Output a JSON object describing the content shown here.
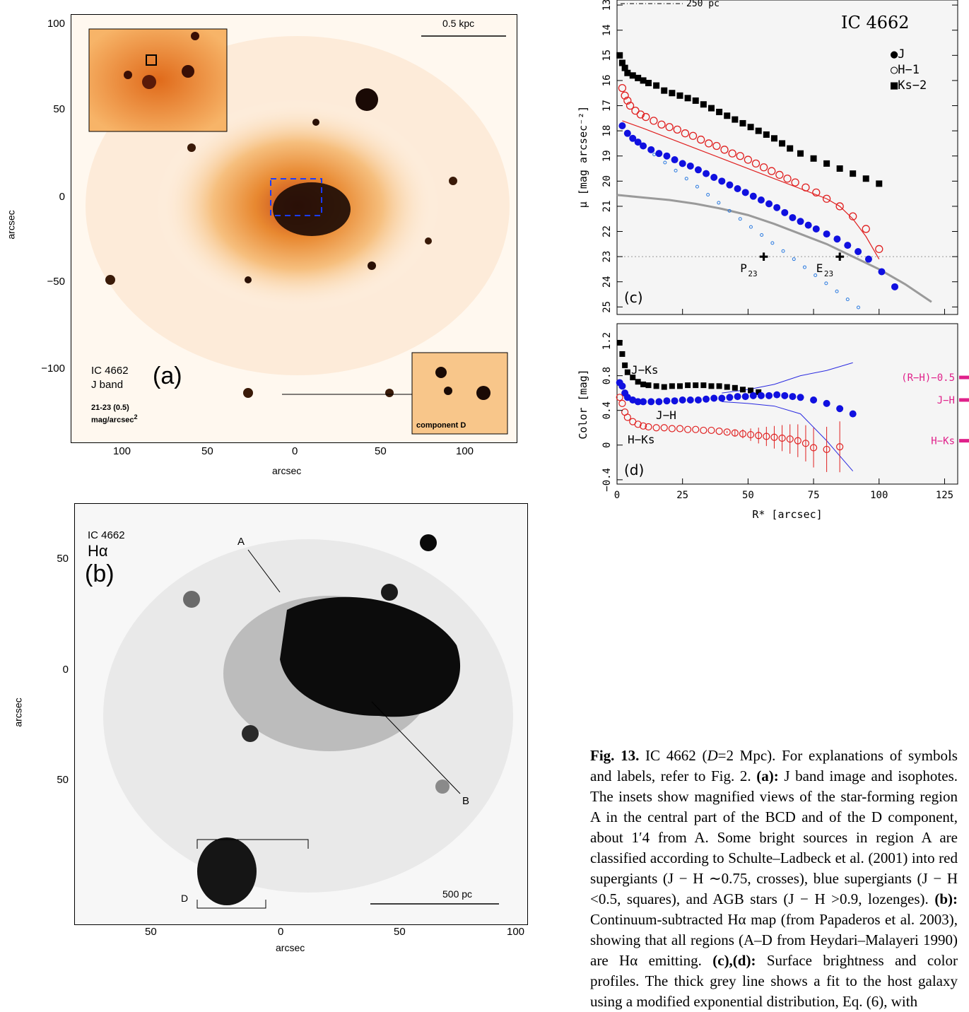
{
  "panel_a": {
    "object": "IC 4662",
    "band": "J band",
    "label": "(a)",
    "range_line1": "21-23 (0.5)",
    "range_line2": "mag/arcsec",
    "range_sup": "2",
    "scale_bar": "0.5 kpc",
    "inset_label": "component D",
    "axis_label": "arcsec",
    "x_ticks": [
      "100",
      "50",
      "0",
      "50",
      "100"
    ],
    "y_ticks": [
      "100",
      "50",
      "0",
      "−50",
      "−100"
    ]
  },
  "panel_b": {
    "object": "IC 4662",
    "band": "Hα",
    "label": "(b)",
    "region_a": "A",
    "region_b": "B",
    "region_d": "D",
    "scale_bar": "500 pc",
    "axis_label": "arcsec",
    "x_ticks": [
      "50",
      "0",
      "50",
      "100"
    ],
    "y_ticks": [
      "50",
      "0",
      "50"
    ]
  },
  "panel_c": {
    "label": "(c)",
    "object": "IC 4662",
    "scale_bar": "250 pc",
    "ylabel": "μ [mag arcsec⁻²]",
    "legend": [
      "●J",
      "○H−1",
      "■Ks−2"
    ],
    "annot_p": "P",
    "annot_e": "E",
    "annot_sub": "23",
    "y_ticks": [
      "13",
      "14",
      "15",
      "16",
      "17",
      "18",
      "19",
      "20",
      "21",
      "22",
      "23",
      "24",
      "25"
    ]
  },
  "panel_d": {
    "label": "(d)",
    "ylabel": "Color [mag]",
    "xlabel": "R* [arcsec]",
    "curve_labels": [
      "J−Ks",
      "J−H",
      "H−Ks"
    ],
    "side_labels": [
      "(R−H)−0.5",
      "J−H",
      "H−Ks"
    ],
    "y_ticks": [
      "1.2",
      "0.8",
      "0.4",
      "0",
      "−0.4"
    ],
    "x_ticks": [
      "0",
      "25",
      "50",
      "75",
      "100",
      "125"
    ]
  },
  "caption": {
    "fig": "Fig. 13.",
    "text1": " IC 4662 (",
    "d_var": "D",
    "text2": "=2 Mpc). For explanations of symbols and labels, refer to Fig. 2. ",
    "a_tag": "(a):",
    "text3": " J band image and isophotes. The insets show magnified views of the star-forming region A in the central part of the BCD and of the D component, about 1′4 from A. Some bright sources in region A are classified according to Schulte–Ladbeck et al. (2001) into red supergiants (J − H ∼0.75, crosses), blue supergiants (J − H <0.5, squares), and AGB stars (J − H >0.9, lozenges). ",
    "b_tag": "(b):",
    "text4": " Continuum-subtracted Hα map (from Papaderos et al. 2003), showing that all regions (A–D from Heydari–Malayeri 1990) are Hα emitting. ",
    "cd_tag": "(c),(d):",
    "text5": " Surface brightness and color profiles. The thick grey line shows a fit to the host galaxy using a modified exponential distribution, Eq. (6), with"
  },
  "chart_data": [
    {
      "type": "scatter",
      "title": "IC 4662",
      "xlabel": "",
      "ylabel": "μ [mag arcsec⁻²]",
      "xlim": [
        0,
        130
      ],
      "ylim": [
        25.3,
        12.8
      ],
      "series": [
        {
          "name": "Ks−2",
          "marker": "filled-square",
          "color": "#000000",
          "x": [
            1,
            2,
            3,
            4,
            6,
            8,
            10,
            12,
            15,
            18,
            21,
            24,
            27,
            30,
            33,
            36,
            39,
            42,
            45,
            48,
            51,
            54,
            57,
            60,
            63,
            66,
            70,
            75,
            80,
            85,
            90,
            95,
            100
          ],
          "y": [
            15.0,
            15.3,
            15.5,
            15.7,
            15.8,
            15.9,
            16.0,
            16.1,
            16.2,
            16.4,
            16.5,
            16.6,
            16.7,
            16.8,
            16.95,
            17.1,
            17.25,
            17.4,
            17.55,
            17.7,
            17.85,
            18.0,
            18.15,
            18.3,
            18.5,
            18.7,
            18.9,
            19.1,
            19.3,
            19.5,
            19.7,
            19.9,
            20.1
          ]
        },
        {
          "name": "H−1",
          "marker": "open-circle",
          "color": "#e02020",
          "x": [
            2,
            3,
            4,
            5,
            7,
            9,
            11,
            14,
            17,
            20,
            23,
            26,
            29,
            32,
            35,
            38,
            41,
            44,
            47,
            50,
            53,
            56,
            59,
            62,
            65,
            68,
            72,
            76,
            80,
            85,
            90,
            95,
            100
          ],
          "y": [
            16.3,
            16.6,
            16.8,
            17.0,
            17.2,
            17.35,
            17.45,
            17.6,
            17.75,
            17.85,
            17.95,
            18.1,
            18.2,
            18.35,
            18.5,
            18.6,
            18.75,
            18.9,
            19.0,
            19.15,
            19.3,
            19.45,
            19.6,
            19.75,
            19.9,
            20.05,
            20.25,
            20.45,
            20.7,
            21.0,
            21.4,
            21.9,
            22.7
          ]
        },
        {
          "name": "J",
          "marker": "filled-circle",
          "color": "#1010e0",
          "x": [
            2,
            4,
            6,
            8,
            10,
            13,
            16,
            19,
            22,
            25,
            28,
            31,
            34,
            37,
            40,
            43,
            46,
            49,
            52,
            55,
            58,
            61,
            64,
            67,
            70,
            73,
            76,
            80,
            84,
            88,
            92,
            96,
            101,
            106
          ],
          "y": [
            17.8,
            18.1,
            18.3,
            18.45,
            18.6,
            18.75,
            18.9,
            19.0,
            19.15,
            19.3,
            19.4,
            19.55,
            19.7,
            19.85,
            20.0,
            20.15,
            20.3,
            20.45,
            20.6,
            20.75,
            20.9,
            21.05,
            21.25,
            21.45,
            21.6,
            21.75,
            21.9,
            22.1,
            22.3,
            22.55,
            22.8,
            23.1,
            23.6,
            24.2
          ]
        }
      ]
    },
    {
      "type": "scatter",
      "title": "",
      "xlabel": "R* [arcsec]",
      "ylabel": "Color [mag]",
      "xlim": [
        0,
        130
      ],
      "ylim": [
        -0.45,
        1.4
      ],
      "series": [
        {
          "name": "J−Ks",
          "marker": "filled-square",
          "color": "#000000",
          "x": [
            1,
            2,
            3,
            4,
            6,
            8,
            10,
            12,
            15,
            18,
            21,
            24,
            27,
            30,
            33,
            36,
            39,
            42,
            45,
            48,
            51,
            54
          ],
          "y": [
            1.18,
            1.05,
            0.92,
            0.84,
            0.78,
            0.73,
            0.7,
            0.69,
            0.68,
            0.67,
            0.68,
            0.68,
            0.69,
            0.69,
            0.69,
            0.68,
            0.68,
            0.67,
            0.66,
            0.64,
            0.63,
            0.61
          ]
        },
        {
          "name": "J−H",
          "marker": "filled-circle",
          "color": "#1010e0",
          "x": [
            1,
            2,
            3,
            4,
            6,
            8,
            10,
            13,
            16,
            19,
            22,
            25,
            28,
            31,
            34,
            37,
            40,
            43,
            46,
            49,
            52,
            55,
            58,
            61,
            64,
            67,
            70,
            75,
            80,
            85,
            90
          ],
          "y": [
            0.72,
            0.68,
            0.6,
            0.55,
            0.52,
            0.5,
            0.5,
            0.5,
            0.5,
            0.51,
            0.51,
            0.52,
            0.52,
            0.52,
            0.53,
            0.54,
            0.54,
            0.55,
            0.56,
            0.56,
            0.57,
            0.57,
            0.57,
            0.58,
            0.57,
            0.56,
            0.55,
            0.52,
            0.48,
            0.42,
            0.36
          ]
        },
        {
          "name": "H−Ks",
          "marker": "open-circle",
          "color": "#e02020",
          "x": [
            1,
            2,
            3,
            4,
            6,
            8,
            10,
            12,
            15,
            18,
            21,
            24,
            27,
            30,
            33,
            36,
            39,
            42,
            45,
            48,
            51,
            54,
            57,
            60,
            63,
            66,
            69,
            72,
            75,
            80,
            85
          ],
          "y": [
            0.55,
            0.48,
            0.38,
            0.32,
            0.27,
            0.24,
            0.22,
            0.21,
            0.2,
            0.2,
            0.19,
            0.19,
            0.18,
            0.18,
            0.17,
            0.17,
            0.16,
            0.15,
            0.14,
            0.13,
            0.12,
            0.11,
            0.1,
            0.09,
            0.08,
            0.07,
            0.05,
            0.02,
            -0.03,
            -0.05,
            -0.02
          ]
        }
      ]
    }
  ]
}
